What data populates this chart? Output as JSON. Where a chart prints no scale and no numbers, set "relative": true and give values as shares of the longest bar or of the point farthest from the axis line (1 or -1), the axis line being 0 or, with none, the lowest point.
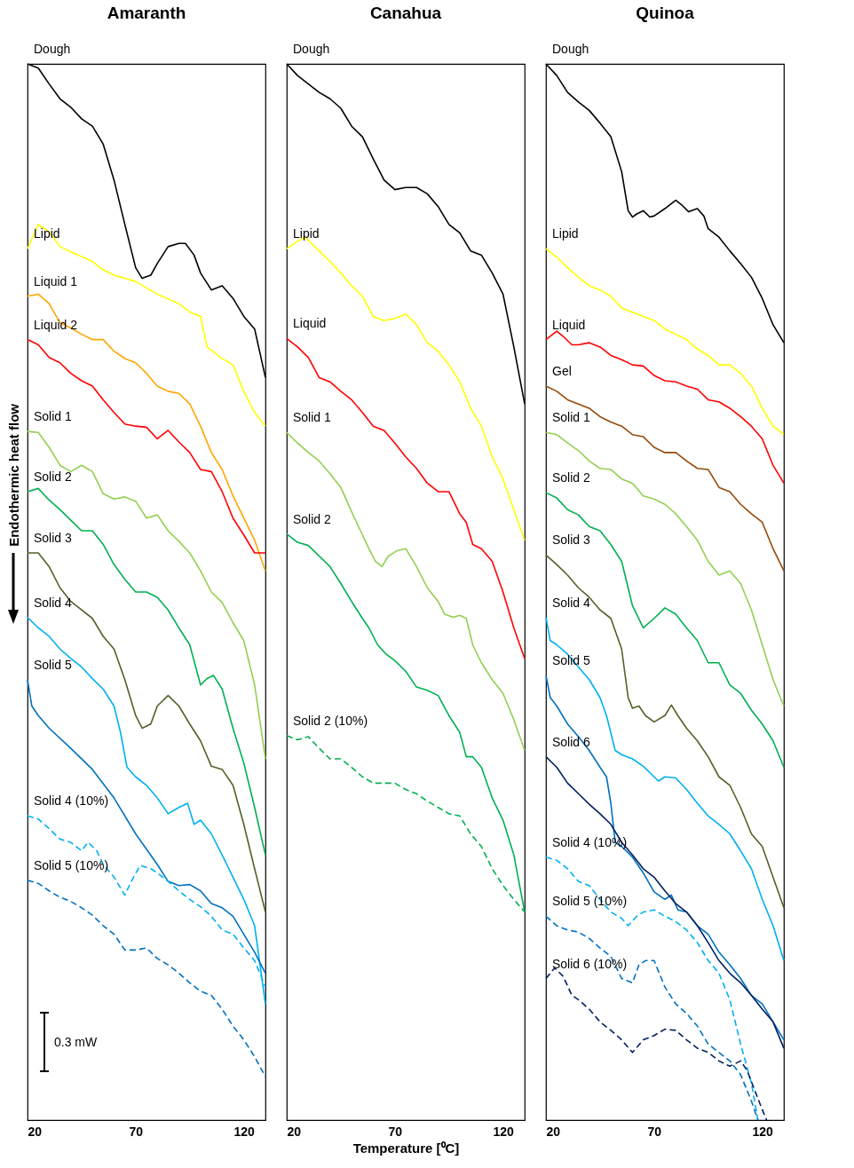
{
  "chart_data": [
    {
      "type": "line",
      "title": "Amaranth",
      "ylabel": "Endothermic heat flow",
      "relative": true,
      "xlim": [
        20,
        130
      ],
      "xticks": [
        20,
        70,
        120
      ],
      "annotations": [
        "0.3 mW"
      ],
      "series": [
        {
          "name": "Dough",
          "color": "#000000",
          "x": [
            20,
            25,
            30,
            35,
            40,
            45,
            50,
            55,
            60,
            65,
            70,
            73,
            77,
            80,
            85,
            90,
            93,
            97,
            100,
            105,
            110,
            115,
            120,
            125,
            130
          ],
          "values": [
            1.0,
            0.996,
            0.981,
            0.967,
            0.959,
            0.948,
            0.941,
            0.924,
            0.89,
            0.848,
            0.807,
            0.797,
            0.8,
            0.811,
            0.827,
            0.83,
            0.83,
            0.819,
            0.802,
            0.786,
            0.79,
            0.778,
            0.761,
            0.749,
            0.703
          ]
        },
        {
          "name": "Lipid",
          "color": "#ffff00",
          "x": [
            20,
            25,
            30,
            35,
            40,
            50,
            55,
            60,
            70,
            80,
            90,
            95,
            100,
            103,
            110,
            115,
            120,
            125,
            130
          ],
          "values": [
            0.825,
            0.848,
            0.841,
            0.827,
            0.822,
            0.813,
            0.805,
            0.8,
            0.794,
            0.782,
            0.773,
            0.765,
            0.761,
            0.732,
            0.721,
            0.715,
            0.69,
            0.67,
            0.657
          ]
        },
        {
          "name": "Liquid 1",
          "color": "#ffa500",
          "x": [
            20,
            25,
            30,
            35,
            40,
            45,
            50,
            55,
            60,
            65,
            70,
            75,
            80,
            85,
            90,
            95,
            100,
            105,
            110,
            115,
            120,
            125,
            130
          ],
          "values": [
            0.78,
            0.782,
            0.773,
            0.755,
            0.75,
            0.744,
            0.739,
            0.739,
            0.728,
            0.721,
            0.717,
            0.707,
            0.695,
            0.69,
            0.688,
            0.678,
            0.657,
            0.632,
            0.616,
            0.591,
            0.57,
            0.549,
            0.52
          ]
        },
        {
          "name": "Liquid 2",
          "color": "#ff0000",
          "x": [
            20,
            25,
            30,
            35,
            40,
            45,
            50,
            55,
            60,
            65,
            70,
            75,
            80,
            85,
            90,
            95,
            100,
            105,
            110,
            115,
            120,
            125,
            130
          ],
          "values": [
            0.739,
            0.734,
            0.722,
            0.717,
            0.707,
            0.7,
            0.695,
            0.682,
            0.67,
            0.659,
            0.657,
            0.656,
            0.645,
            0.653,
            0.642,
            0.632,
            0.616,
            0.614,
            0.595,
            0.57,
            0.554,
            0.537,
            0.537
          ]
        },
        {
          "name": "Solid 1",
          "color": "#92d050",
          "x": [
            20,
            25,
            30,
            35,
            40,
            45,
            50,
            55,
            60,
            65,
            70,
            75,
            80,
            85,
            90,
            95,
            100,
            105,
            110,
            115,
            120,
            125,
            130
          ],
          "values": [
            0.652,
            0.651,
            0.637,
            0.62,
            0.614,
            0.62,
            0.614,
            0.593,
            0.588,
            0.59,
            0.586,
            0.57,
            0.573,
            0.558,
            0.548,
            0.537,
            0.52,
            0.5,
            0.49,
            0.471,
            0.454,
            0.412,
            0.342
          ]
        },
        {
          "name": "Solid 2",
          "color": "#00b050",
          "x": [
            20,
            25,
            30,
            35,
            40,
            45,
            50,
            55,
            60,
            65,
            70,
            75,
            80,
            85,
            90,
            95,
            100,
            103,
            106,
            110,
            115,
            120,
            125,
            130
          ],
          "values": [
            0.595,
            0.598,
            0.587,
            0.578,
            0.568,
            0.558,
            0.558,
            0.545,
            0.526,
            0.512,
            0.5,
            0.5,
            0.495,
            0.483,
            0.466,
            0.45,
            0.412,
            0.418,
            0.421,
            0.408,
            0.371,
            0.338,
            0.296,
            0.251
          ]
        },
        {
          "name": "Solid 3",
          "color": "#4f6228",
          "x": [
            20,
            25,
            30,
            35,
            40,
            45,
            50,
            55,
            60,
            65,
            70,
            73,
            77,
            80,
            85,
            90,
            95,
            100,
            105,
            110,
            115,
            120,
            125,
            130
          ],
          "values": [
            0.537,
            0.537,
            0.524,
            0.504,
            0.491,
            0.483,
            0.475,
            0.458,
            0.446,
            0.417,
            0.383,
            0.371,
            0.375,
            0.392,
            0.402,
            0.392,
            0.375,
            0.359,
            0.335,
            0.332,
            0.317,
            0.28,
            0.238,
            0.197
          ]
        },
        {
          "name": "Solid 4",
          "color": "#00b0f0",
          "x": [
            20,
            25,
            30,
            35,
            40,
            45,
            50,
            55,
            60,
            63,
            66,
            70,
            75,
            80,
            85,
            90,
            94,
            97,
            100,
            105,
            110,
            115,
            120,
            125,
            130
          ],
          "values": [
            0.476,
            0.466,
            0.458,
            0.446,
            0.437,
            0.429,
            0.418,
            0.408,
            0.392,
            0.367,
            0.334,
            0.325,
            0.317,
            0.305,
            0.29,
            0.296,
            0.3,
            0.28,
            0.284,
            0.271,
            0.251,
            0.23,
            0.209,
            0.184,
            0.11
          ]
        },
        {
          "name": "Solid 5",
          "color": "#0070c0",
          "x": [
            20,
            22,
            25,
            30,
            40,
            50,
            60,
            70,
            80,
            85,
            90,
            95,
            100,
            105,
            110,
            115,
            120,
            125,
            130
          ],
          "values": [
            0.417,
            0.392,
            0.383,
            0.371,
            0.352,
            0.332,
            0.305,
            0.271,
            0.242,
            0.226,
            0.222,
            0.223,
            0.217,
            0.205,
            0.201,
            0.193,
            0.176,
            0.159,
            0.139
          ]
        },
        {
          "name": "Solid 4 (10%)",
          "color": "#00b0f0",
          "line_style": "dashed",
          "x": [
            20,
            25,
            30,
            35,
            40,
            45,
            48,
            52,
            55,
            60,
            65,
            68,
            72,
            77,
            80,
            85,
            90,
            95,
            100,
            105,
            110,
            115,
            120,
            125,
            130
          ],
          "values": [
            0.288,
            0.285,
            0.276,
            0.266,
            0.263,
            0.255,
            0.263,
            0.255,
            0.242,
            0.23,
            0.213,
            0.226,
            0.241,
            0.238,
            0.234,
            0.226,
            0.217,
            0.209,
            0.202,
            0.193,
            0.18,
            0.176,
            0.163,
            0.151,
            0.126
          ]
        },
        {
          "name": "Solid 5 (10%)",
          "color": "#0070c0",
          "line_style": "dashed",
          "x": [
            20,
            25,
            30,
            35,
            40,
            45,
            50,
            55,
            60,
            65,
            70,
            75,
            80,
            85,
            90,
            95,
            100,
            105,
            110,
            115,
            120,
            125,
            130
          ],
          "values": [
            0.227,
            0.224,
            0.217,
            0.211,
            0.207,
            0.201,
            0.194,
            0.184,
            0.176,
            0.161,
            0.161,
            0.163,
            0.153,
            0.147,
            0.139,
            0.13,
            0.122,
            0.118,
            0.105,
            0.089,
            0.076,
            0.06,
            0.041
          ]
        }
      ]
    },
    {
      "type": "line",
      "title": "Canahua",
      "xlabel": "Temperature [⁰C]",
      "relative": true,
      "xlim": [
        20,
        130
      ],
      "xticks": [
        20,
        70,
        120
      ],
      "series": [
        {
          "name": "Dough",
          "color": "#000000",
          "x": [
            20,
            25,
            30,
            35,
            40,
            45,
            50,
            55,
            60,
            65,
            70,
            75,
            80,
            85,
            90,
            95,
            100,
            105,
            110,
            115,
            120,
            125,
            130
          ],
          "values": [
            1.0,
            0.989,
            0.981,
            0.973,
            0.967,
            0.958,
            0.941,
            0.931,
            0.91,
            0.89,
            0.881,
            0.883,
            0.883,
            0.877,
            0.865,
            0.848,
            0.84,
            0.823,
            0.819,
            0.802,
            0.782,
            0.732,
            0.678
          ]
        },
        {
          "name": "Lipid",
          "color": "#ffff00",
          "x": [
            20,
            25,
            28,
            30,
            35,
            40,
            45,
            50,
            55,
            60,
            65,
            70,
            75,
            80,
            85,
            90,
            95,
            100,
            105,
            110,
            115,
            120,
            125,
            130
          ],
          "values": [
            0.825,
            0.832,
            0.836,
            0.833,
            0.823,
            0.813,
            0.802,
            0.79,
            0.78,
            0.761,
            0.757,
            0.759,
            0.763,
            0.753,
            0.736,
            0.728,
            0.715,
            0.699,
            0.674,
            0.657,
            0.628,
            0.607,
            0.578,
            0.549
          ]
        },
        {
          "name": "Liquid",
          "color": "#ff0000",
          "x": [
            20,
            25,
            30,
            35,
            40,
            45,
            50,
            55,
            60,
            65,
            70,
            75,
            80,
            85,
            90,
            95,
            100,
            103,
            106,
            110,
            115,
            120,
            125,
            130
          ],
          "values": [
            0.74,
            0.732,
            0.722,
            0.703,
            0.699,
            0.69,
            0.682,
            0.67,
            0.657,
            0.653,
            0.641,
            0.628,
            0.617,
            0.603,
            0.595,
            0.595,
            0.574,
            0.566,
            0.545,
            0.541,
            0.529,
            0.5,
            0.466,
            0.437
          ]
        },
        {
          "name": "Solid 1",
          "color": "#92d050",
          "x": [
            20,
            25,
            30,
            35,
            40,
            45,
            50,
            55,
            58,
            61,
            64,
            67,
            71,
            75,
            80,
            85,
            90,
            93,
            97,
            100,
            103,
            106,
            110,
            115,
            120,
            125,
            130
          ],
          "values": [
            0.651,
            0.641,
            0.632,
            0.624,
            0.612,
            0.599,
            0.576,
            0.554,
            0.541,
            0.529,
            0.524,
            0.534,
            0.539,
            0.541,
            0.524,
            0.504,
            0.491,
            0.479,
            0.476,
            0.478,
            0.475,
            0.45,
            0.433,
            0.417,
            0.404,
            0.379,
            0.35
          ]
        },
        {
          "name": "Solid 2",
          "color": "#00b050",
          "x": [
            20,
            25,
            30,
            35,
            40,
            45,
            50,
            55,
            58,
            62,
            66,
            70,
            75,
            80,
            85,
            90,
            95,
            100,
            103,
            106,
            110,
            115,
            120,
            125,
            130
          ],
          "values": [
            0.555,
            0.547,
            0.544,
            0.534,
            0.524,
            0.508,
            0.491,
            0.475,
            0.466,
            0.45,
            0.441,
            0.435,
            0.425,
            0.41,
            0.407,
            0.402,
            0.383,
            0.367,
            0.344,
            0.344,
            0.334,
            0.305,
            0.284,
            0.251,
            0.197
          ]
        },
        {
          "name": "Solid 2 (10%)",
          "color": "#00b050",
          "line_style": "dashed",
          "x": [
            20,
            25,
            30,
            35,
            40,
            45,
            50,
            55,
            60,
            70,
            75,
            80,
            85,
            90,
            95,
            100,
            105,
            110,
            115,
            120,
            125,
            130
          ],
          "values": [
            0.364,
            0.36,
            0.363,
            0.352,
            0.342,
            0.342,
            0.334,
            0.325,
            0.319,
            0.319,
            0.313,
            0.309,
            0.302,
            0.296,
            0.29,
            0.288,
            0.271,
            0.259,
            0.238,
            0.222,
            0.209,
            0.197
          ]
        }
      ]
    },
    {
      "type": "line",
      "title": "Quinoa",
      "relative": true,
      "xlim": [
        20,
        130
      ],
      "xticks": [
        20,
        70,
        120
      ],
      "series": [
        {
          "name": "Dough",
          "color": "#000000",
          "x": [
            20,
            25,
            30,
            35,
            40,
            45,
            50,
            55,
            58,
            60,
            62,
            65,
            68,
            70,
            75,
            80,
            83,
            86,
            90,
            93,
            95,
            100,
            105,
            110,
            115,
            120,
            125,
            130
          ],
          "values": [
            1.0,
            0.989,
            0.973,
            0.964,
            0.956,
            0.944,
            0.931,
            0.898,
            0.861,
            0.855,
            0.858,
            0.861,
            0.855,
            0.856,
            0.863,
            0.871,
            0.866,
            0.86,
            0.863,
            0.856,
            0.844,
            0.836,
            0.823,
            0.811,
            0.798,
            0.778,
            0.753,
            0.736
          ]
        },
        {
          "name": "Lipid",
          "color": "#ffff00",
          "x": [
            20,
            25,
            30,
            35,
            40,
            45,
            50,
            55,
            60,
            65,
            70,
            75,
            80,
            85,
            90,
            95,
            100,
            105,
            110,
            115,
            120,
            125,
            130
          ],
          "values": [
            0.825,
            0.817,
            0.807,
            0.798,
            0.79,
            0.786,
            0.78,
            0.769,
            0.765,
            0.761,
            0.757,
            0.749,
            0.744,
            0.739,
            0.73,
            0.724,
            0.715,
            0.715,
            0.707,
            0.695,
            0.674,
            0.657,
            0.649
          ]
        },
        {
          "name": "Liquid",
          "color": "#ff0000",
          "x": [
            20,
            25,
            28,
            32,
            35,
            40,
            45,
            50,
            55,
            60,
            65,
            70,
            75,
            80,
            85,
            90,
            95,
            100,
            105,
            110,
            115,
            120,
            125,
            130
          ],
          "values": [
            0.739,
            0.747,
            0.742,
            0.734,
            0.734,
            0.736,
            0.732,
            0.724,
            0.72,
            0.715,
            0.714,
            0.705,
            0.7,
            0.699,
            0.695,
            0.692,
            0.682,
            0.68,
            0.674,
            0.666,
            0.657,
            0.645,
            0.62,
            0.603
          ]
        },
        {
          "name": "Gel",
          "color": "#984807",
          "x": [
            20,
            25,
            30,
            35,
            40,
            45,
            50,
            55,
            60,
            65,
            70,
            75,
            80,
            85,
            90,
            95,
            100,
            105,
            110,
            115,
            120,
            125,
            130
          ],
          "values": [
            0.695,
            0.69,
            0.682,
            0.678,
            0.674,
            0.666,
            0.661,
            0.657,
            0.649,
            0.647,
            0.637,
            0.632,
            0.632,
            0.624,
            0.617,
            0.616,
            0.599,
            0.595,
            0.583,
            0.574,
            0.566,
            0.541,
            0.52
          ]
        },
        {
          "name": "Solid 1",
          "color": "#92d050",
          "x": [
            20,
            25,
            30,
            35,
            40,
            45,
            50,
            55,
            60,
            65,
            70,
            75,
            80,
            85,
            90,
            95,
            100,
            105,
            110,
            115,
            120,
            125,
            130
          ],
          "values": [
            0.651,
            0.649,
            0.641,
            0.634,
            0.624,
            0.617,
            0.616,
            0.607,
            0.603,
            0.591,
            0.588,
            0.583,
            0.574,
            0.562,
            0.549,
            0.529,
            0.516,
            0.52,
            0.508,
            0.483,
            0.45,
            0.417,
            0.392
          ]
        },
        {
          "name": "Solid 2",
          "color": "#00b050",
          "x": [
            20,
            25,
            30,
            35,
            40,
            45,
            50,
            55,
            60,
            65,
            70,
            75,
            80,
            85,
            90,
            95,
            100,
            105,
            110,
            115,
            120,
            125,
            130
          ],
          "values": [
            0.594,
            0.589,
            0.578,
            0.573,
            0.562,
            0.558,
            0.545,
            0.529,
            0.487,
            0.466,
            0.475,
            0.485,
            0.479,
            0.466,
            0.454,
            0.433,
            0.433,
            0.412,
            0.404,
            0.388,
            0.375,
            0.359,
            0.334
          ]
        },
        {
          "name": "Solid 3",
          "color": "#4f6228",
          "x": [
            20,
            25,
            30,
            35,
            40,
            45,
            50,
            55,
            58,
            60,
            63,
            66,
            70,
            75,
            78,
            81,
            85,
            90,
            95,
            100,
            105,
            110,
            115,
            120,
            125,
            130
          ],
          "values": [
            0.535,
            0.526,
            0.516,
            0.504,
            0.495,
            0.483,
            0.475,
            0.446,
            0.4,
            0.39,
            0.392,
            0.383,
            0.377,
            0.383,
            0.393,
            0.383,
            0.371,
            0.359,
            0.344,
            0.325,
            0.317,
            0.296,
            0.271,
            0.259,
            0.23,
            0.201
          ]
        },
        {
          "name": "Solid 4",
          "color": "#00b0f0",
          "x": [
            20,
            22,
            25,
            30,
            35,
            40,
            45,
            48,
            52,
            55,
            60,
            65,
            68,
            72,
            75,
            80,
            85,
            90,
            95,
            100,
            105,
            110,
            115,
            120,
            125,
            130
          ],
          "values": [
            0.476,
            0.454,
            0.45,
            0.441,
            0.429,
            0.417,
            0.4,
            0.383,
            0.35,
            0.346,
            0.342,
            0.335,
            0.329,
            0.321,
            0.325,
            0.324,
            0.313,
            0.3,
            0.288,
            0.28,
            0.271,
            0.255,
            0.238,
            0.209,
            0.184,
            0.151
          ]
        },
        {
          "name": "Solid 5",
          "color": "#0070c0",
          "x": [
            20,
            22,
            25,
            30,
            35,
            40,
            45,
            48,
            50,
            52,
            55,
            60,
            65,
            70,
            75,
            78,
            81,
            85,
            90,
            95,
            100,
            105,
            110,
            115,
            120,
            125,
            130
          ],
          "values": [
            0.421,
            0.4,
            0.392,
            0.375,
            0.363,
            0.35,
            0.334,
            0.325,
            0.3,
            0.263,
            0.259,
            0.249,
            0.234,
            0.216,
            0.209,
            0.213,
            0.199,
            0.197,
            0.184,
            0.176,
            0.159,
            0.147,
            0.134,
            0.118,
            0.11,
            0.093,
            0.076
          ]
        },
        {
          "name": "Solid 6",
          "color": "#002060",
          "x": [
            20,
            25,
            30,
            35,
            40,
            45,
            50,
            55,
            60,
            65,
            70,
            75,
            80,
            85,
            90,
            95,
            100,
            105,
            110,
            115,
            120,
            125,
            130
          ],
          "values": [
            0.344,
            0.334,
            0.319,
            0.309,
            0.299,
            0.29,
            0.28,
            0.263,
            0.251,
            0.238,
            0.23,
            0.217,
            0.205,
            0.197,
            0.184,
            0.168,
            0.151,
            0.139,
            0.13,
            0.118,
            0.105,
            0.093,
            0.068
          ]
        },
        {
          "name": "Solid 4 (10%)",
          "color": "#00b0f0",
          "line_style": "dashed",
          "x": [
            20,
            25,
            30,
            35,
            40,
            45,
            50,
            55,
            58,
            62,
            65,
            70,
            75,
            80,
            85,
            90,
            95,
            100,
            105,
            110,
            115,
            118
          ],
          "values": [
            0.249,
            0.246,
            0.238,
            0.226,
            0.222,
            0.209,
            0.197,
            0.191,
            0.184,
            0.193,
            0.197,
            0.199,
            0.193,
            0.188,
            0.18,
            0.168,
            0.151,
            0.139,
            0.114,
            0.072,
            0.035,
            0
          ]
        },
        {
          "name": "Solid 5 (10%)",
          "color": "#0070c0",
          "line_style": "dashed",
          "x": [
            20,
            25,
            30,
            35,
            40,
            45,
            50,
            55,
            60,
            63,
            66,
            70,
            75,
            80,
            85,
            90,
            95,
            100,
            105,
            110,
            115,
            118
          ],
          "values": [
            0.193,
            0.184,
            0.18,
            0.178,
            0.172,
            0.163,
            0.155,
            0.134,
            0.13,
            0.147,
            0.151,
            0.151,
            0.126,
            0.11,
            0.101,
            0.089,
            0.072,
            0.064,
            0.056,
            0.043,
            0.018,
            0
          ]
        },
        {
          "name": "Solid 6 (10%)",
          "color": "#002060",
          "line_style": "dashed",
          "x": [
            20,
            24,
            28,
            32,
            35,
            40,
            45,
            50,
            55,
            60,
            65,
            70,
            75,
            80,
            85,
            90,
            95,
            100,
            105,
            110,
            113,
            116,
            120,
            122
          ],
          "values": [
            0.134,
            0.144,
            0.136,
            0.118,
            0.114,
            0.105,
            0.093,
            0.085,
            0.076,
            0.064,
            0.076,
            0.08,
            0.086,
            0.085,
            0.076,
            0.068,
            0.064,
            0.056,
            0.051,
            0.056,
            0.047,
            0.031,
            0.01,
            0
          ]
        }
      ]
    }
  ]
}
